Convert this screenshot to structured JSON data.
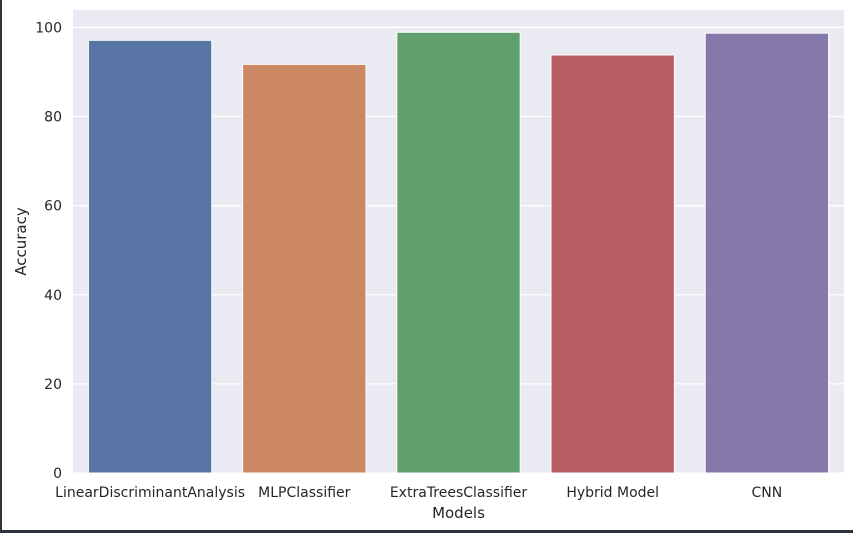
{
  "chart_data": {
    "type": "bar",
    "title": "",
    "xlabel": "Models",
    "ylabel": "Accuracy",
    "categories": [
      "LinearDiscriminantAnalysis",
      "MLPClassifier",
      "ExtraTreesClassifier",
      "Hybrid Model",
      "CNN"
    ],
    "values": [
      97.1,
      91.7,
      98.9,
      93.8,
      98.7
    ],
    "colors": [
      "#5874a4",
      "#cc8862",
      "#5f9f6e",
      "#b65d61",
      "#8579ac"
    ],
    "ylim": [
      0,
      100
    ],
    "yticks": [
      0,
      20,
      40,
      60,
      80,
      100
    ],
    "ytick_labels": [
      "0",
      "20",
      "40",
      "60",
      "80",
      "100"
    ],
    "grid": true,
    "background_color": "#eaeaf2",
    "grid_color": "#ffffff"
  }
}
